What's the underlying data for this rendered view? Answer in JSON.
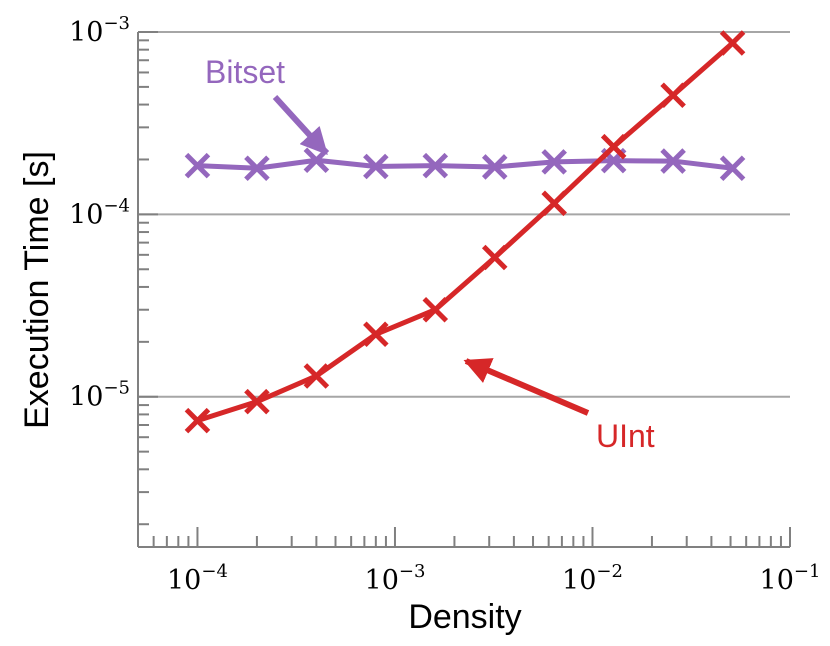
{
  "chart_data": {
    "type": "line",
    "xscale": "log",
    "yscale": "log",
    "xlabel": "Density",
    "ylabel": "Execution Time [s]",
    "xlim": [
      5e-05,
      0.1
    ],
    "ylim": [
      1.5e-06,
      0.001
    ],
    "xticks": [
      {
        "value": 0.0001,
        "base": "10",
        "exp": "−4"
      },
      {
        "value": 0.001,
        "base": "10",
        "exp": "−3"
      },
      {
        "value": 0.01,
        "base": "10",
        "exp": "−2"
      },
      {
        "value": 0.1,
        "base": "10",
        "exp": "−1"
      }
    ],
    "yticks": [
      {
        "value": 1e-05,
        "base": "10",
        "exp": "−5"
      },
      {
        "value": 0.0001,
        "base": "10",
        "exp": "−4"
      },
      {
        "value": 0.001,
        "base": "10",
        "exp": "−3"
      }
    ],
    "grid": "horizontal-major",
    "x": [
      0.0001,
      0.0002,
      0.0004,
      0.0008,
      0.0016,
      0.0032,
      0.0064,
      0.0128,
      0.0256,
      0.0512
    ],
    "series": [
      {
        "name": "Bitset",
        "color": "#9467bd",
        "marker": "x",
        "values": [
          0.000185,
          0.000179,
          0.000198,
          0.000183,
          0.000185,
          0.000182,
          0.000194,
          0.000197,
          0.000196,
          0.000179
        ]
      },
      {
        "name": "UInt",
        "color": "#d62728",
        "marker": "x",
        "values": [
          7.4e-06,
          9.4e-06,
          1.3e-05,
          2.2e-05,
          3e-05,
          5.8e-05,
          0.000115,
          0.000235,
          0.00045,
          0.00087
        ]
      }
    ],
    "annotations": [
      {
        "text": "Bitset",
        "color": "#9467bd",
        "points_to_series": "Bitset"
      },
      {
        "text": "UInt",
        "color": "#d62728",
        "points_to_series": "UInt"
      }
    ]
  }
}
